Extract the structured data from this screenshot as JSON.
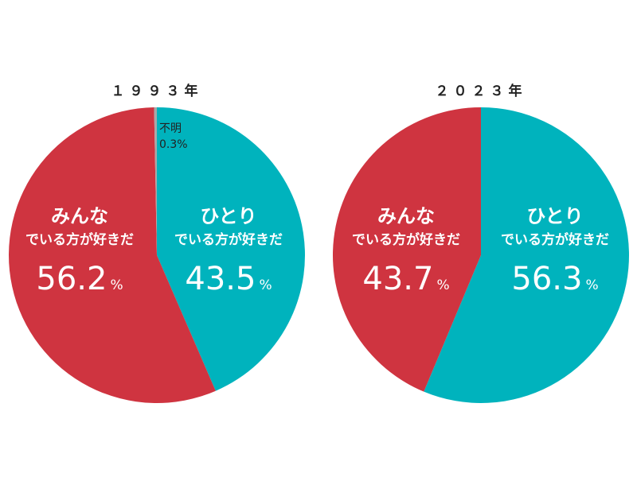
{
  "chart_data": [
    {
      "type": "pie",
      "title": "１９９３年",
      "slices": [
        {
          "key": "hitori",
          "head": "ひとり",
          "sub": "でいる方が好きだ",
          "value": 43.5,
          "value_label": "43.5",
          "unit": "%",
          "color": "#00b3bd"
        },
        {
          "key": "minna",
          "head": "みんな",
          "sub": "でいる方が好きだ",
          "value": 56.2,
          "value_label": "56.2",
          "unit": "%",
          "color": "#cf3440"
        },
        {
          "key": "unknown",
          "head": "不明",
          "sub": "",
          "value": 0.3,
          "value_label": "0.3",
          "unit": "%",
          "color": "#a8a8a8"
        }
      ]
    },
    {
      "type": "pie",
      "title": "２０２３年",
      "slices": [
        {
          "key": "hitori",
          "head": "ひとり",
          "sub": "でいる方が好きだ",
          "value": 56.3,
          "value_label": "56.3",
          "unit": "%",
          "color": "#00b3bd"
        },
        {
          "key": "minna",
          "head": "みんな",
          "sub": "でいる方が好きだ",
          "value": 43.7,
          "value_label": "43.7",
          "unit": "%",
          "color": "#cf3440"
        }
      ]
    }
  ]
}
